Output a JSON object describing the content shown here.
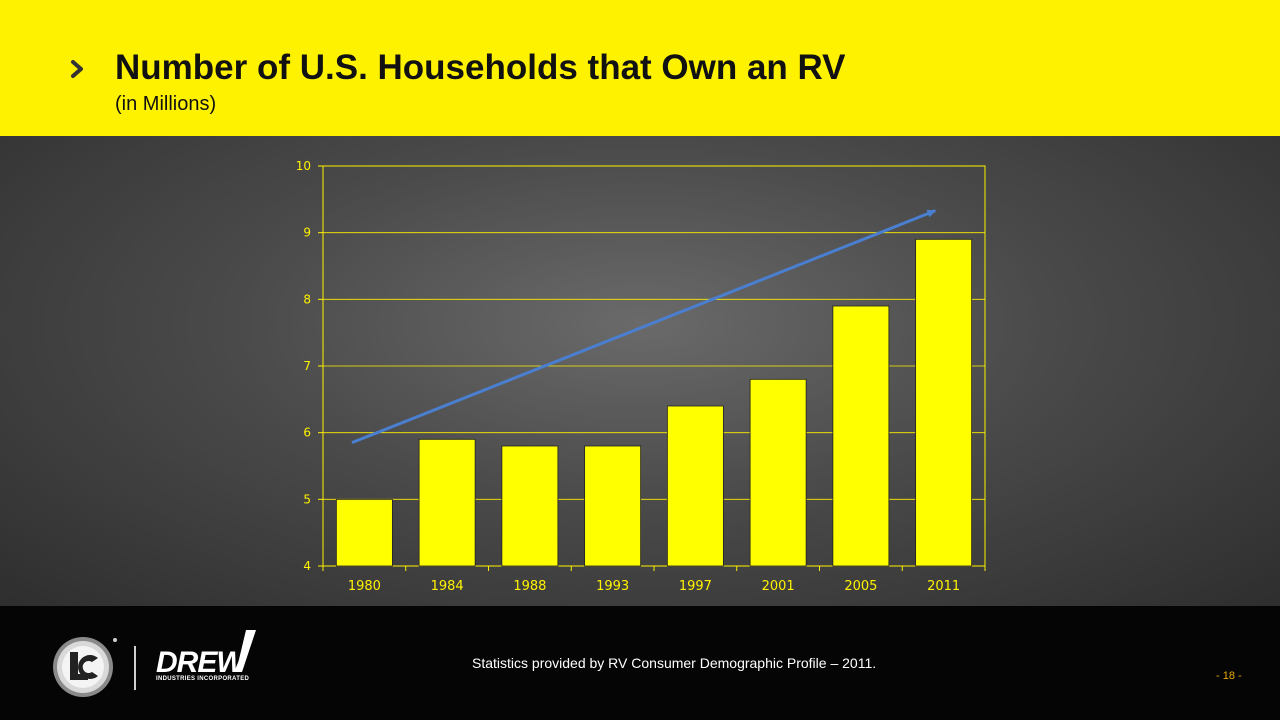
{
  "header": {
    "title": "Number of U.S. Households that Own an RV",
    "subtitle": "(in Millions)"
  },
  "colors": {
    "accent_yellow": "#fff200",
    "bar_fill": "#ffff00",
    "trend_arrow": "#4a7fd0",
    "axis_text": "#fff200"
  },
  "chart_data": {
    "type": "bar",
    "categories": [
      "1980",
      "1984",
      "1988",
      "1993",
      "1997",
      "2001",
      "2005",
      "2011"
    ],
    "values": [
      5.0,
      5.9,
      5.8,
      5.8,
      6.4,
      6.8,
      7.9,
      8.9
    ],
    "ylim": [
      4,
      10
    ],
    "yticks": [
      4,
      5,
      6,
      7,
      8,
      9,
      10
    ],
    "xlabel": "",
    "ylabel": "",
    "grid": true,
    "trend_arrow": {
      "start_value": 5.85,
      "end_value": 9.33
    }
  },
  "footer": {
    "source": "Statistics provided by RV Consumer Demographic Profile – 2011.",
    "page_number": "- 18 -",
    "drew_name": "DREW",
    "drew_subtitle": "INDUSTRIES INCORPORATED",
    "icons": [
      "lci-logo",
      "drew-industries-logo"
    ]
  }
}
